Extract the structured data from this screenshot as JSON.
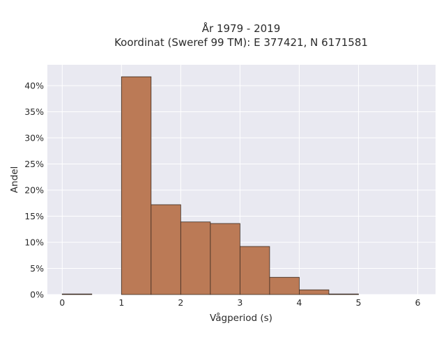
{
  "chart_data": {
    "type": "bar",
    "title_lines": [
      "År 1979 - 2019",
      "Koordinat (Sweref 99 TM): E 377421, N 6171581"
    ],
    "xlabel": "Vågperiod (s)",
    "ylabel": "Andel",
    "xlim": [
      -0.25,
      6.3
    ],
    "ylim": [
      0,
      44
    ],
    "x_ticks": [
      0,
      1,
      2,
      3,
      4,
      5,
      6
    ],
    "x_tick_labels": [
      "0",
      "1",
      "2",
      "3",
      "4",
      "5",
      "6"
    ],
    "y_ticks": [
      0,
      5,
      10,
      15,
      20,
      25,
      30,
      35,
      40
    ],
    "y_tick_labels": [
      "0%",
      "5%",
      "10%",
      "15%",
      "20%",
      "25%",
      "30%",
      "35%",
      "40%"
    ],
    "bin_width": 0.5,
    "bins": [
      {
        "x0": 0.0,
        "value": 0.05
      },
      {
        "x0": 0.5,
        "value": 0
      },
      {
        "x0": 1.0,
        "value": 41.7
      },
      {
        "x0": 1.5,
        "value": 17.2
      },
      {
        "x0": 2.0,
        "value": 13.9
      },
      {
        "x0": 2.5,
        "value": 13.6
      },
      {
        "x0": 3.0,
        "value": 9.2
      },
      {
        "x0": 3.5,
        "value": 3.3
      },
      {
        "x0": 4.0,
        "value": 0.9
      },
      {
        "x0": 4.5,
        "value": 0.1
      },
      {
        "x0": 5.0,
        "value": 0
      },
      {
        "x0": 5.5,
        "value": 0
      }
    ],
    "grid": true,
    "legend": "none",
    "colors": {
      "bar_fill": "#bb7a56",
      "bar_edge": "#3a2a20",
      "plot_background": "#e9e9f1",
      "grid": "#ffffff"
    }
  }
}
